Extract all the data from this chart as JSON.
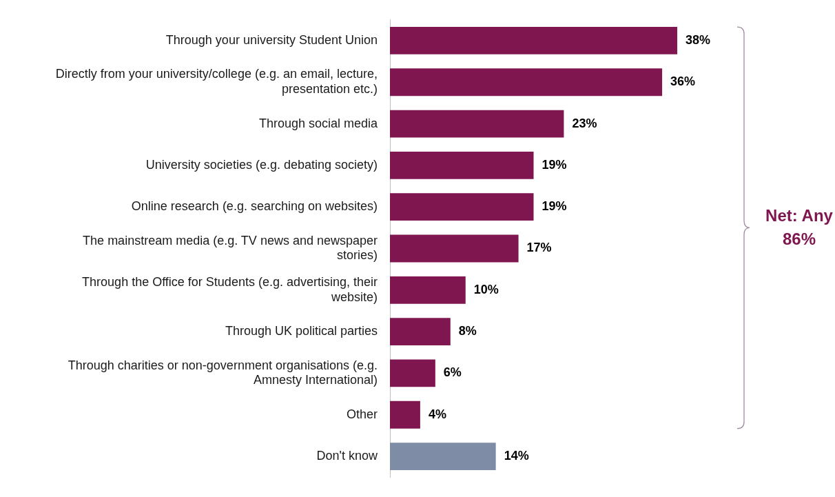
{
  "chart_data": {
    "type": "bar",
    "orientation": "horizontal",
    "categories": [
      "Through your university Student Union",
      "Directly from your university/college (e.g. an email, lecture, presentation etc.)",
      "Through social media",
      "University societies (e.g. debating society)",
      "Online research (e.g. searching on websites)",
      "The mainstream media (e.g. TV news and newspaper stories)",
      "Through the Office for Students (e.g. advertising, their website)",
      "Through UK political parties",
      "Through charities or non-government organisations (e.g. Amnesty International)",
      "Other",
      "Don't know"
    ],
    "values": [
      38,
      36,
      23,
      19,
      19,
      17,
      10,
      8,
      6,
      4,
      14
    ],
    "colors": [
      "#7f1650",
      "#7f1650",
      "#7f1650",
      "#7f1650",
      "#7f1650",
      "#7f1650",
      "#7f1650",
      "#7f1650",
      "#7f1650",
      "#7f1650",
      "#7f8ca6"
    ],
    "value_labels": [
      "38%",
      "36%",
      "23%",
      "19%",
      "19%",
      "17%",
      "10%",
      "8%",
      "6%",
      "4%",
      "14%"
    ],
    "tick_labels": "y",
    "legend": false,
    "annotations": [
      "Net: Any 86%"
    ]
  }
}
